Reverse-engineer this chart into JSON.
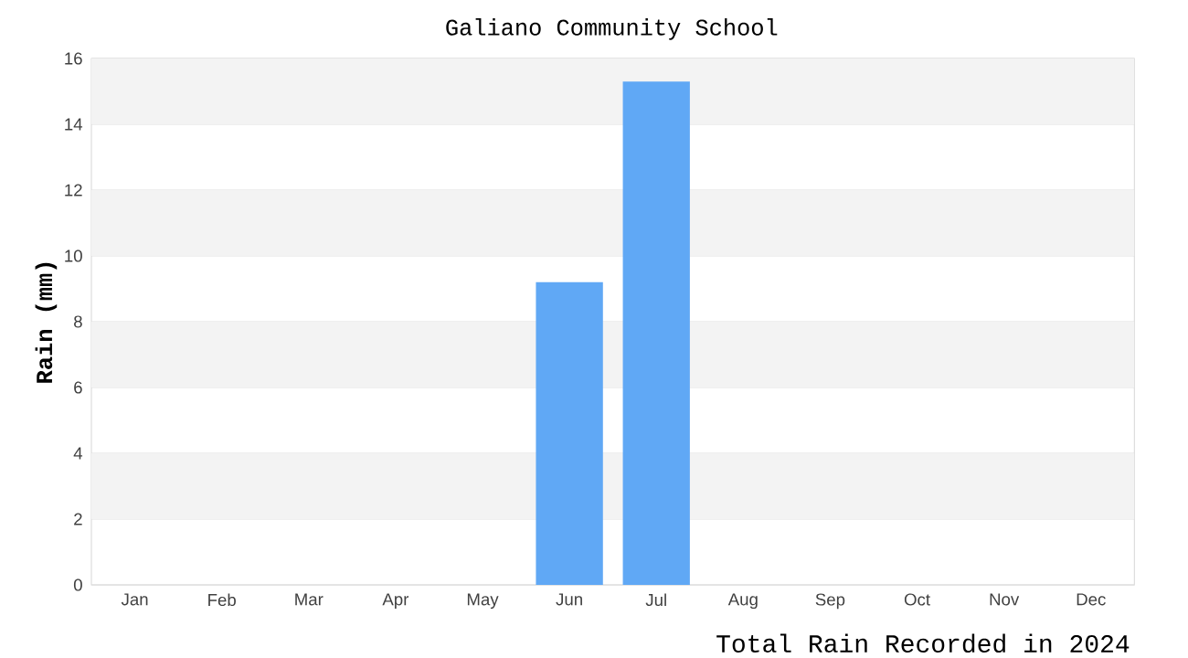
{
  "chart_data": {
    "type": "bar",
    "title": "Galiano Community School",
    "xlabel": "Total Rain Recorded in 2024",
    "ylabel": "Rain (mm)",
    "categories": [
      "Jan",
      "Feb",
      "Mar",
      "Apr",
      "May",
      "Jun",
      "Jul",
      "Aug",
      "Sep",
      "Oct",
      "Nov",
      "Dec"
    ],
    "values": [
      0,
      0,
      0,
      0,
      0,
      9.2,
      15.3,
      0,
      0,
      0,
      0,
      0
    ],
    "color": "#60a8f5",
    "ylim": [
      0,
      16
    ],
    "yticks": [
      0,
      2,
      4,
      6,
      8,
      10,
      12,
      14,
      16
    ],
    "grid": "y",
    "bands": [
      {
        "axis": "y",
        "from": 2,
        "to": 4,
        "color": "#f3f3f3"
      },
      {
        "axis": "y",
        "from": 6,
        "to": 8,
        "color": "#f3f3f3"
      },
      {
        "axis": "y",
        "from": 10,
        "to": 12,
        "color": "#f3f3f3"
      },
      {
        "axis": "y",
        "from": 14,
        "to": 16,
        "color": "#f3f3f3"
      }
    ]
  }
}
